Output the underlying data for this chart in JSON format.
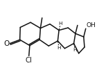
{
  "bg": "#ffffff",
  "lc": "#111111",
  "lw": 1.1,
  "fs": 6.0,
  "figsize": [
    1.4,
    1.11
  ],
  "dpi": 100,
  "xlim": [
    -0.8,
    10.2
  ],
  "ylim": [
    0.5,
    7.8
  ]
}
